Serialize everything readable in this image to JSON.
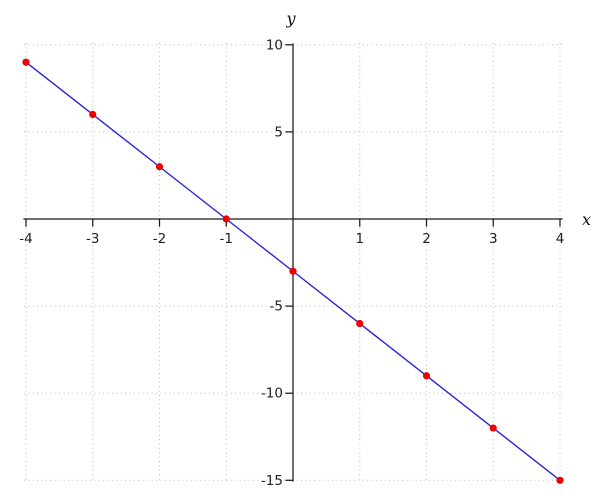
{
  "chart_data": {
    "type": "line",
    "xlabel": "x",
    "ylabel": "y",
    "xlim": [
      -4,
      4
    ],
    "ylim": [
      -15,
      10
    ],
    "x_ticks": [
      -4,
      -3,
      -2,
      -1,
      1,
      2,
      3,
      4
    ],
    "y_ticks": [
      10,
      5,
      -5,
      -10,
      -15
    ],
    "grid": true,
    "legend": false,
    "line": {
      "x": [
        -4,
        -3,
        -2,
        -1,
        0,
        1,
        2,
        3,
        4
      ],
      "y": [
        9,
        6,
        3,
        0,
        -3,
        -6,
        -9,
        -12,
        -15
      ],
      "color": "#2525dd"
    },
    "points": {
      "x": [
        -4,
        -3,
        -2,
        -1,
        0,
        1,
        2,
        3,
        4
      ],
      "y": [
        9,
        6,
        3,
        0,
        -3,
        -6,
        -9,
        -12,
        -15
      ],
      "color": "#ee0000"
    },
    "colors": {
      "grid": "#bbbbbb",
      "axis": "#1a1a1a",
      "tick_label": "#222222",
      "background": "#ffffff"
    }
  }
}
